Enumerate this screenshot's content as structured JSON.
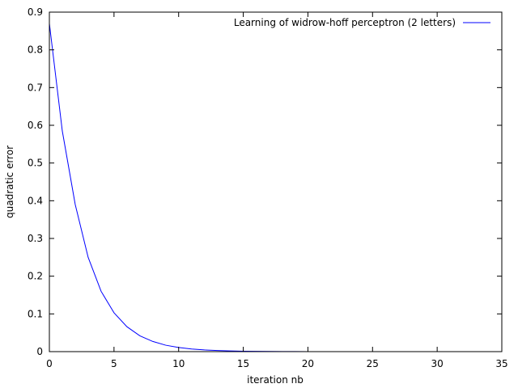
{
  "chart_data": {
    "type": "line",
    "title": "",
    "xlabel": "iteration nb",
    "ylabel": "quadratic error",
    "xlim": [
      0,
      35
    ],
    "ylim": [
      0,
      0.9
    ],
    "x_ticks": [
      0,
      5,
      10,
      15,
      20,
      25,
      30,
      35
    ],
    "y_ticks": [
      0,
      0.1,
      0.2,
      0.3,
      0.4,
      0.5,
      0.6,
      0.7,
      0.8,
      0.9
    ],
    "x_tick_labels": [
      "0",
      "5",
      "10",
      "15",
      "20",
      "25",
      "30",
      "35"
    ],
    "y_tick_labels": [
      "0",
      "0.1",
      "0.2",
      "0.3",
      "0.4",
      "0.5",
      "0.6",
      "0.7",
      "0.8",
      "0.9"
    ],
    "grid": false,
    "legend_position": "top-right",
    "series": [
      {
        "name": "Learning of widrow-hoff perceptron (2 letters)",
        "color": "#0000ff",
        "x": [
          0,
          1,
          2,
          3,
          4,
          5,
          6,
          7,
          8,
          9,
          10,
          11,
          12,
          13,
          14,
          15,
          16,
          17,
          18,
          19,
          20,
          21,
          22,
          23,
          24,
          25,
          26,
          27,
          28,
          29,
          30
        ],
        "y": [
          0.87,
          0.585,
          0.39,
          0.25,
          0.16,
          0.103,
          0.066,
          0.042,
          0.027,
          0.017,
          0.011,
          0.007,
          0.0045,
          0.0029,
          0.0018,
          0.0012,
          0.0008,
          0.0005,
          0.0003,
          0.0002,
          0.0001,
          0.0001,
          0.0001,
          0,
          0,
          0,
          0,
          0,
          0,
          0,
          0
        ]
      }
    ]
  }
}
